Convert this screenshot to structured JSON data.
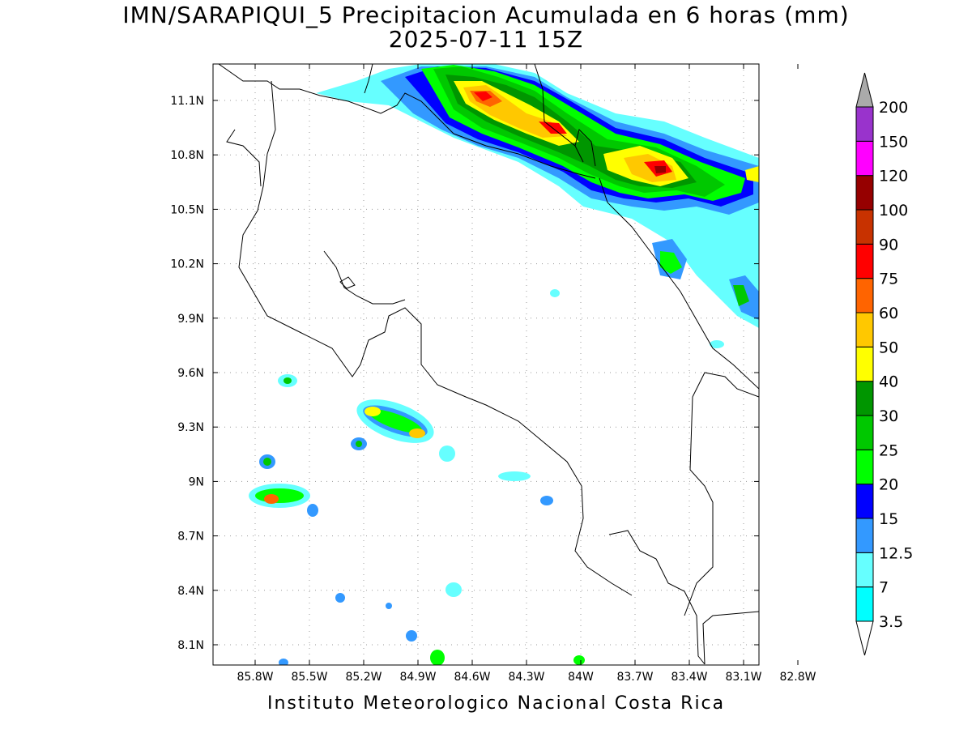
{
  "title": {
    "line1": "IMN/SARAPIQUI_5 Precipitacion Acumulada en 6 horas (mm)",
    "line2": "2025-07-11 15Z"
  },
  "footer": "Instituto Meteorologico Nacional Costa Rica",
  "map": {
    "lon_range": [
      -86.0,
      -83.0
    ],
    "lat_range": [
      8.0,
      11.2
    ],
    "lon_ticks": [
      "85.8W",
      "85.5W",
      "85.2W",
      "84.9W",
      "84.6W",
      "84.3W",
      "84W",
      "83.7W",
      "83.4W",
      "83.1W",
      "82.8W"
    ],
    "lat_ticks": [
      "11.1N",
      "10.8N",
      "10.5N",
      "10.2N",
      "9.9N",
      "9.6N",
      "9.3N",
      "9N",
      "8.7N",
      "8.4N",
      "8.1N"
    ]
  },
  "colorbar": {
    "levels": [
      "3.5",
      "7",
      "12.5",
      "15",
      "20",
      "25",
      "30",
      "40",
      "50",
      "60",
      "75",
      "90",
      "100",
      "120",
      "150",
      "200"
    ],
    "colors": [
      "#00ffff",
      "#66ffff",
      "#3399ff",
      "#0000ff",
      "#00ff00",
      "#00c800",
      "#009600",
      "#ffff00",
      "#ffc800",
      "#ff6400",
      "#ff0000",
      "#c83200",
      "#960000",
      "#ff00ff",
      "#9933cc",
      "#f5f5f5",
      "#aaaaaa"
    ]
  }
}
